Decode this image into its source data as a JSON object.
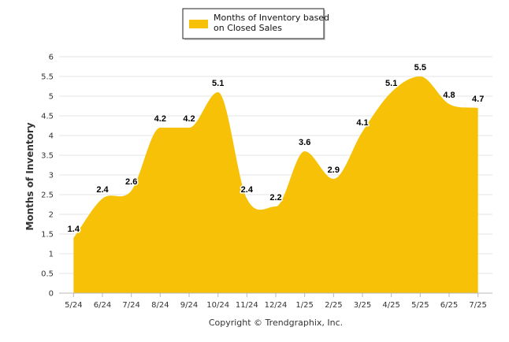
{
  "chart_data": {
    "type": "area",
    "categories": [
      "5/24",
      "6/24",
      "7/24",
      "8/24",
      "9/24",
      "10/24",
      "11/24",
      "12/24",
      "1/25",
      "2/25",
      "3/25",
      "4/25",
      "5/25",
      "6/25",
      "7/25"
    ],
    "series": [
      {
        "name": "Months of Inventory based on Closed Sales",
        "values": [
          1.4,
          2.4,
          2.6,
          4.2,
          4.2,
          5.1,
          2.4,
          2.2,
          3.6,
          2.9,
          4.1,
          5.1,
          5.5,
          4.8,
          4.7
        ],
        "color": "#F7C108"
      }
    ],
    "data_labels": [
      "1.4",
      "2.4",
      "2.6",
      "4.2",
      "4.2",
      "5.1",
      "2.4",
      "2.2",
      "3.6",
      "2.9",
      "4.1",
      "5.1",
      "5.5",
      "4.8",
      "4.7"
    ],
    "y_ticks": [
      "0",
      "0.5",
      "1",
      "1.5",
      "2",
      "2.5",
      "3",
      "3.5",
      "4",
      "4.5",
      "5",
      "5.5",
      "6"
    ],
    "ylim": [
      0,
      6
    ],
    "xlabel": "",
    "ylabel": "Months of Inventory",
    "legend": {
      "line1": "Months of Inventory based",
      "line2": "on Closed Sales",
      "placement": "top-center"
    },
    "grid": true,
    "credit": "Copyright © Trendgraphix, Inc."
  }
}
